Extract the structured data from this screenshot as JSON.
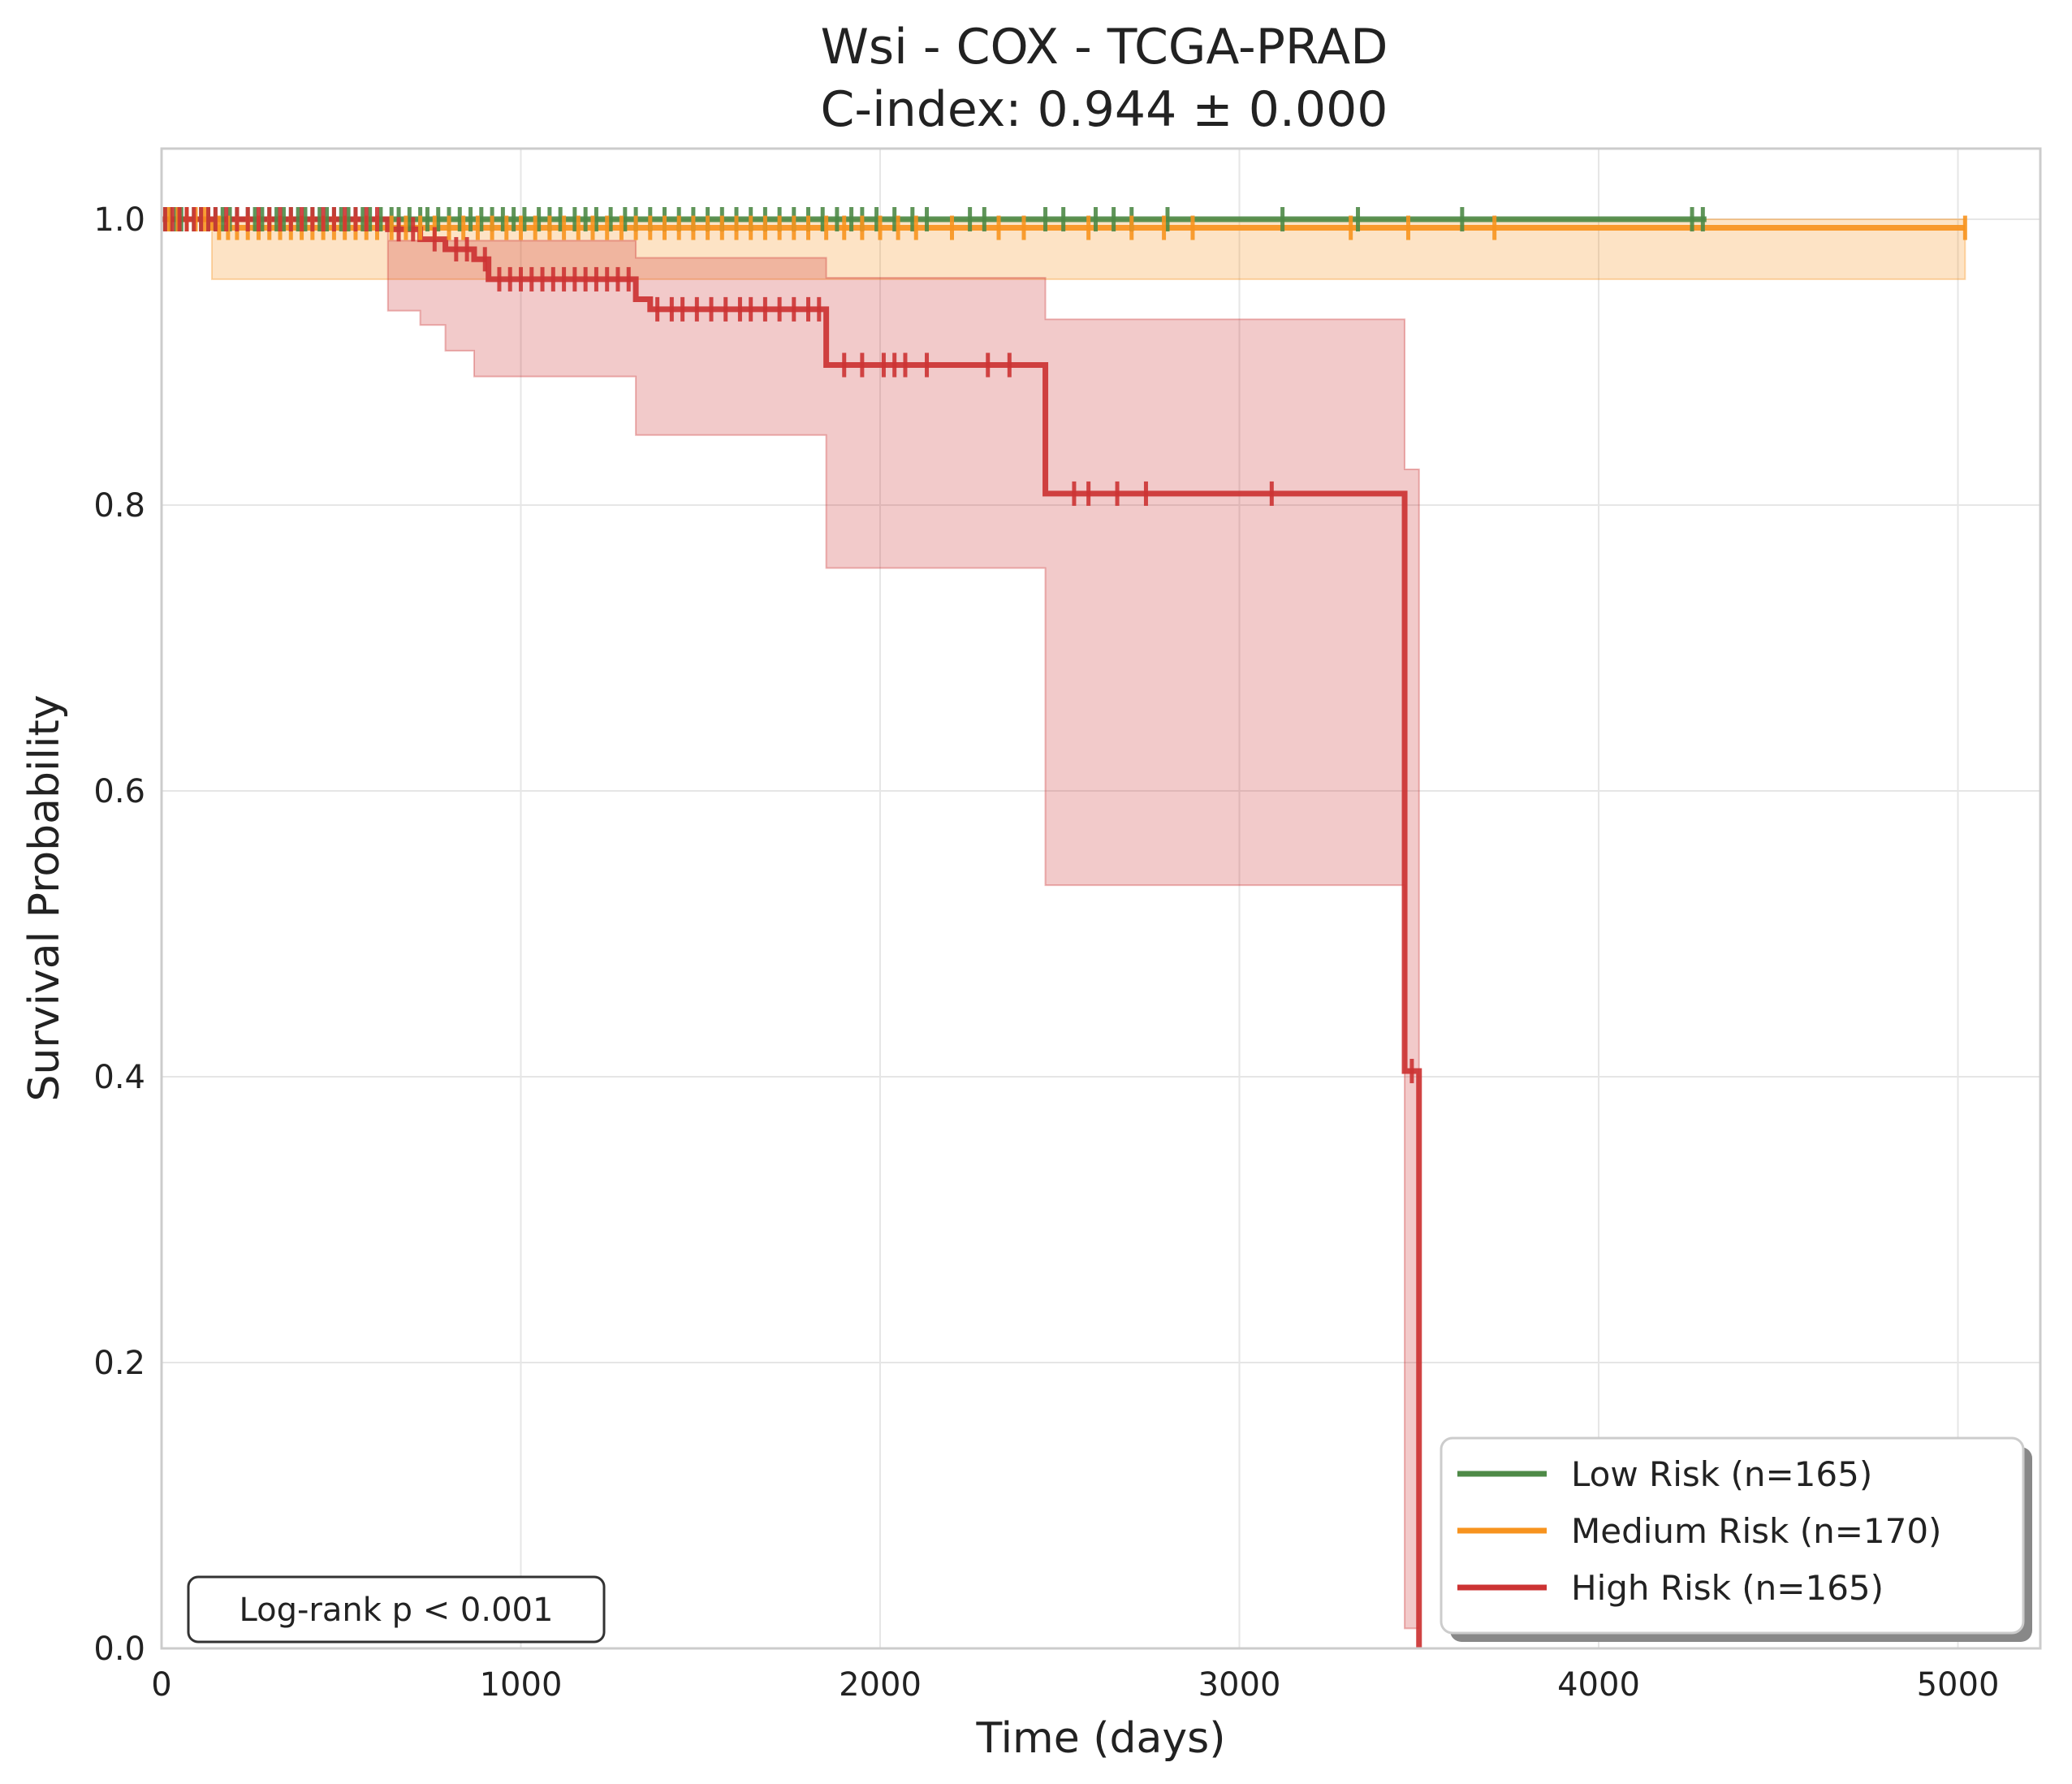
{
  "chart_data": {
    "type": "line",
    "subtype": "kaplan-meier",
    "title": "Wsi - COX - TCGA-PRAD",
    "subtitle": "C-index: 0.944 ± 0.000",
    "xlabel": "Time (days)",
    "ylabel": "Survival Probability",
    "xlim": [
      0,
      5250
    ],
    "ylim": [
      0,
      1.05
    ],
    "xticks": [
      0,
      1000,
      2000,
      3000,
      4000,
      5000
    ],
    "xtick_labels": [
      "0",
      "1000",
      "2000",
      "3000",
      "4000",
      "5000"
    ],
    "yticks": [
      0.0,
      0.2,
      0.4,
      0.6,
      0.8,
      1.0
    ],
    "ytick_labels": [
      "0.0",
      "0.2",
      "0.4",
      "0.6",
      "0.8",
      "1.0"
    ],
    "grid": true,
    "legend_position": "bottom-right",
    "annotation": "Log-rank p < 0.001",
    "series": [
      {
        "name": "Low Risk (n=165)",
        "color": "#4e8a47",
        "steps": [
          [
            0,
            1.0
          ],
          [
            4300,
            1.0
          ]
        ],
        "ci_upper": [
          [
            0,
            1.0
          ],
          [
            4300,
            1.0
          ]
        ],
        "ci_lower": [
          [
            0,
            1.0
          ],
          [
            4300,
            1.0
          ]
        ],
        "censor_times": [
          10,
          25,
          40,
          55,
          70,
          90,
          110,
          130,
          150,
          170,
          190,
          210,
          240,
          260,
          280,
          300,
          320,
          340,
          360,
          380,
          400,
          420,
          440,
          460,
          480,
          500,
          520,
          540,
          560,
          580,
          610,
          640,
          660,
          690,
          720,
          740,
          770,
          800,
          830,
          860,
          890,
          920,
          950,
          980,
          1010,
          1050,
          1080,
          1110,
          1150,
          1180,
          1210,
          1250,
          1290,
          1320,
          1360,
          1400,
          1440,
          1480,
          1520,
          1560,
          1600,
          1640,
          1680,
          1720,
          1760,
          1800,
          1840,
          1880,
          1920,
          1950,
          1990,
          2040,
          2090,
          2130,
          2250,
          2290,
          2460,
          2510,
          2600,
          2650,
          2700,
          2800,
          3120,
          3330,
          3620,
          4260,
          4290
        ]
      },
      {
        "name": "Medium Risk (n=170)",
        "color": "#f7931e",
        "steps": [
          [
            0,
            1.0
          ],
          [
            140,
            1.0
          ],
          [
            140,
            0.994
          ],
          [
            5020,
            0.994
          ]
        ],
        "ci_upper": [
          [
            0,
            1.0
          ],
          [
            5020,
            1.0
          ]
        ],
        "ci_lower": [
          [
            0,
            1.0
          ],
          [
            140,
            1.0
          ],
          [
            140,
            0.958
          ],
          [
            5020,
            0.958
          ]
        ],
        "censor_times": [
          20,
          45,
          70,
          95,
          120,
          160,
          185,
          210,
          240,
          270,
          300,
          330,
          360,
          390,
          420,
          450,
          480,
          510,
          540,
          570,
          600,
          640,
          680,
          720,
          760,
          800,
          840,
          880,
          920,
          960,
          1000,
          1040,
          1080,
          1120,
          1160,
          1200,
          1240,
          1280,
          1320,
          1360,
          1400,
          1440,
          1480,
          1520,
          1560,
          1600,
          1640,
          1680,
          1720,
          1760,
          1800,
          1850,
          1900,
          1950,
          2000,
          2050,
          2100,
          2200,
          2330,
          2400,
          2580,
          2700,
          2790,
          2870,
          3310,
          3470,
          3710,
          5020
        ]
      },
      {
        "name": "High Risk (n=165)",
        "color": "#cc3333",
        "steps": [
          [
            0,
            1.0
          ],
          [
            630,
            1.0
          ],
          [
            630,
            0.993
          ],
          [
            720,
            0.993
          ],
          [
            720,
            0.986
          ],
          [
            790,
            0.986
          ],
          [
            790,
            0.979
          ],
          [
            870,
            0.979
          ],
          [
            870,
            0.972
          ],
          [
            910,
            0.972
          ],
          [
            910,
            0.958
          ],
          [
            1320,
            0.958
          ],
          [
            1320,
            0.944
          ],
          [
            1360,
            0.944
          ],
          [
            1360,
            0.937
          ],
          [
            1850,
            0.937
          ],
          [
            1850,
            0.898
          ],
          [
            2460,
            0.898
          ],
          [
            2460,
            0.808
          ],
          [
            3460,
            0.808
          ],
          [
            3460,
            0.404
          ],
          [
            3500,
            0.404
          ],
          [
            3500,
            0.0
          ]
        ],
        "ci_upper": [
          [
            0,
            1.0
          ],
          [
            630,
            1.0
          ],
          [
            630,
            0.985
          ],
          [
            1320,
            0.985
          ],
          [
            1320,
            0.973
          ],
          [
            1850,
            0.973
          ],
          [
            1850,
            0.959
          ],
          [
            2460,
            0.959
          ],
          [
            2460,
            0.93
          ],
          [
            3460,
            0.93
          ],
          [
            3460,
            0.825
          ],
          [
            3500,
            0.825
          ]
        ],
        "ci_lower": [
          [
            0,
            1.0
          ],
          [
            630,
            1.0
          ],
          [
            630,
            0.936
          ],
          [
            720,
            0.936
          ],
          [
            720,
            0.926
          ],
          [
            790,
            0.926
          ],
          [
            790,
            0.908
          ],
          [
            870,
            0.908
          ],
          [
            870,
            0.89
          ],
          [
            1320,
            0.89
          ],
          [
            1320,
            0.849
          ],
          [
            1850,
            0.849
          ],
          [
            1850,
            0.756
          ],
          [
            2460,
            0.756
          ],
          [
            2460,
            0.534
          ],
          [
            3460,
            0.534
          ],
          [
            3460,
            0.014
          ],
          [
            3500,
            0.014
          ]
        ],
        "censor_times": [
          10,
          30,
          50,
          70,
          90,
          110,
          130,
          150,
          180,
          210,
          240,
          270,
          300,
          330,
          360,
          390,
          420,
          450,
          480,
          510,
          540,
          570,
          600,
          660,
          700,
          760,
          820,
          850,
          900,
          940,
          970,
          1000,
          1030,
          1060,
          1090,
          1120,
          1150,
          1180,
          1210,
          1240,
          1270,
          1300,
          1380,
          1420,
          1450,
          1490,
          1530,
          1570,
          1610,
          1640,
          1680,
          1720,
          1760,
          1800,
          1830,
          1900,
          1950,
          2010,
          2040,
          2070,
          2130,
          2300,
          2360,
          2540,
          2580,
          2660,
          2740,
          3090,
          3480
        ]
      }
    ]
  }
}
